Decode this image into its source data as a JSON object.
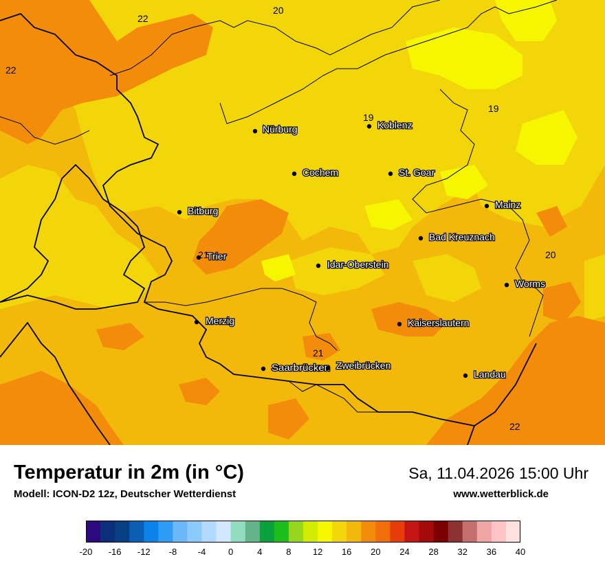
{
  "header": {
    "title": "Temperatur in 2m (in °C)",
    "model": "Modell: ICON-D2 12z, Deutscher Wetterdienst",
    "datetime": "Sa, 11.04.2026 15:00 Uhr",
    "website": "www.wetterblick.de"
  },
  "cities": [
    {
      "name": "Nürburg"
    },
    {
      "name": "Koblenz"
    },
    {
      "name": "Cochem"
    },
    {
      "name": "St. Goar"
    },
    {
      "name": "Bitburg"
    },
    {
      "name": "Mainz"
    },
    {
      "name": "Bad Kreuznach"
    },
    {
      "name": "Trier"
    },
    {
      "name": "Idar-Oberstein"
    },
    {
      "name": "Worms"
    },
    {
      "name": "Merzig"
    },
    {
      "name": "Kaiserslautern"
    },
    {
      "name": "Saarbrücken"
    },
    {
      "name": "Zweibrücken"
    },
    {
      "name": "Landau"
    }
  ],
  "isolines": [
    "20",
    "22",
    "22",
    "19",
    "19",
    "21",
    "20",
    "21",
    "22"
  ],
  "legend": {
    "ticks": [
      "-20",
      "-16",
      "-12",
      "-8",
      "-4",
      "0",
      "4",
      "8",
      "12",
      "16",
      "20",
      "24",
      "28",
      "32",
      "36",
      "40"
    ],
    "colors": [
      "#2c0a7d",
      "#0b2f7a",
      "#073f85",
      "#0a5fb5",
      "#0a84e8",
      "#2f9cf5",
      "#6bb8fb",
      "#8ccafc",
      "#b2dafd",
      "#d2e7fd",
      "#92dcbf",
      "#64b48a",
      "#0aa03c",
      "#1cbe1c",
      "#96d61c",
      "#d2ec00",
      "#f6f600",
      "#f2d60a",
      "#f2b80a",
      "#f28c0a",
      "#f26e0a",
      "#e83c0a",
      "#c41414",
      "#a50a0a",
      "#7d0000",
      "#8c3232",
      "#c46e6e",
      "#f0a5a5",
      "#ffc3c3",
      "#ffe1e1"
    ]
  },
  "colors": {
    "map_base": "#f2b80a",
    "yellow": "#f2d60a",
    "lightyellow": "#f6f600",
    "orange": "#f28c0a"
  }
}
